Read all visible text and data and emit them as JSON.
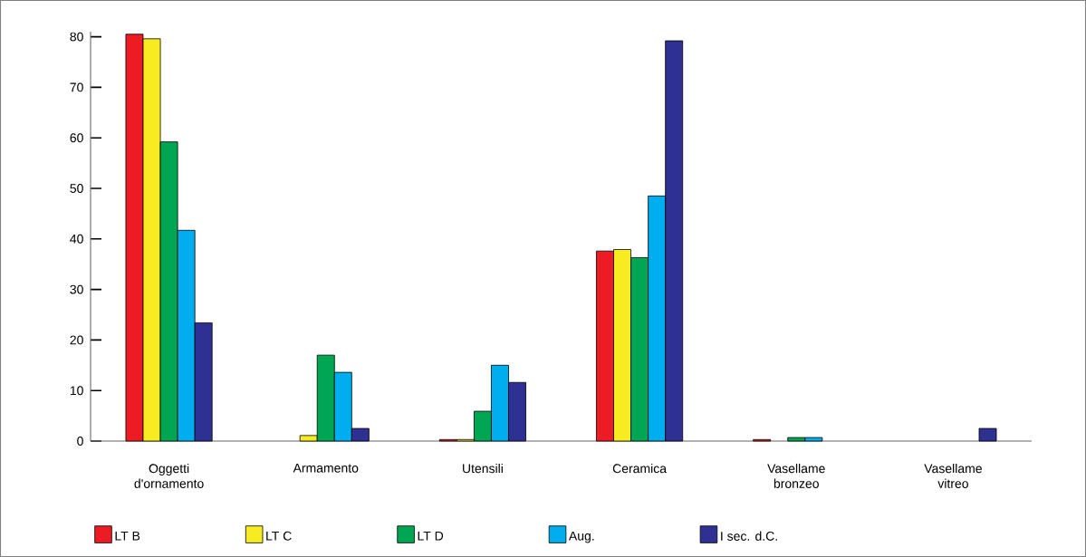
{
  "chart_data": {
    "type": "bar",
    "categories": [
      "Oggetti d'ornamento",
      "Armamento",
      "Utensili",
      "Ceramica",
      "Vasellame bronzeo",
      "Vasellame vitreo"
    ],
    "series": [
      {
        "name": "LT B",
        "color": "#ed1c24",
        "values": [
          80.5,
          null,
          0.3,
          37.6,
          0.3,
          null
        ]
      },
      {
        "name": "LT C",
        "color": "#f7ec21",
        "values": [
          79.6,
          1.1,
          0.3,
          37.9,
          null,
          null
        ]
      },
      {
        "name": "LT D",
        "color": "#00a651",
        "values": [
          59.2,
          17,
          5.9,
          36.3,
          0.7,
          null
        ]
      },
      {
        "name": "Aug.",
        "color": "#00aeef",
        "values": [
          41.7,
          13.6,
          15,
          48.5,
          0.7,
          null
        ]
      },
      {
        "name": "I sec. d.C.",
        "color": "#2e3192",
        "values": [
          23.4,
          2.5,
          11.6,
          79.2,
          null,
          2.5
        ]
      }
    ],
    "ylim": [
      0,
      81
    ],
    "yticks": [
      0,
      10,
      20,
      30,
      40,
      50,
      60,
      70,
      80
    ],
    "legend": "bottom"
  }
}
